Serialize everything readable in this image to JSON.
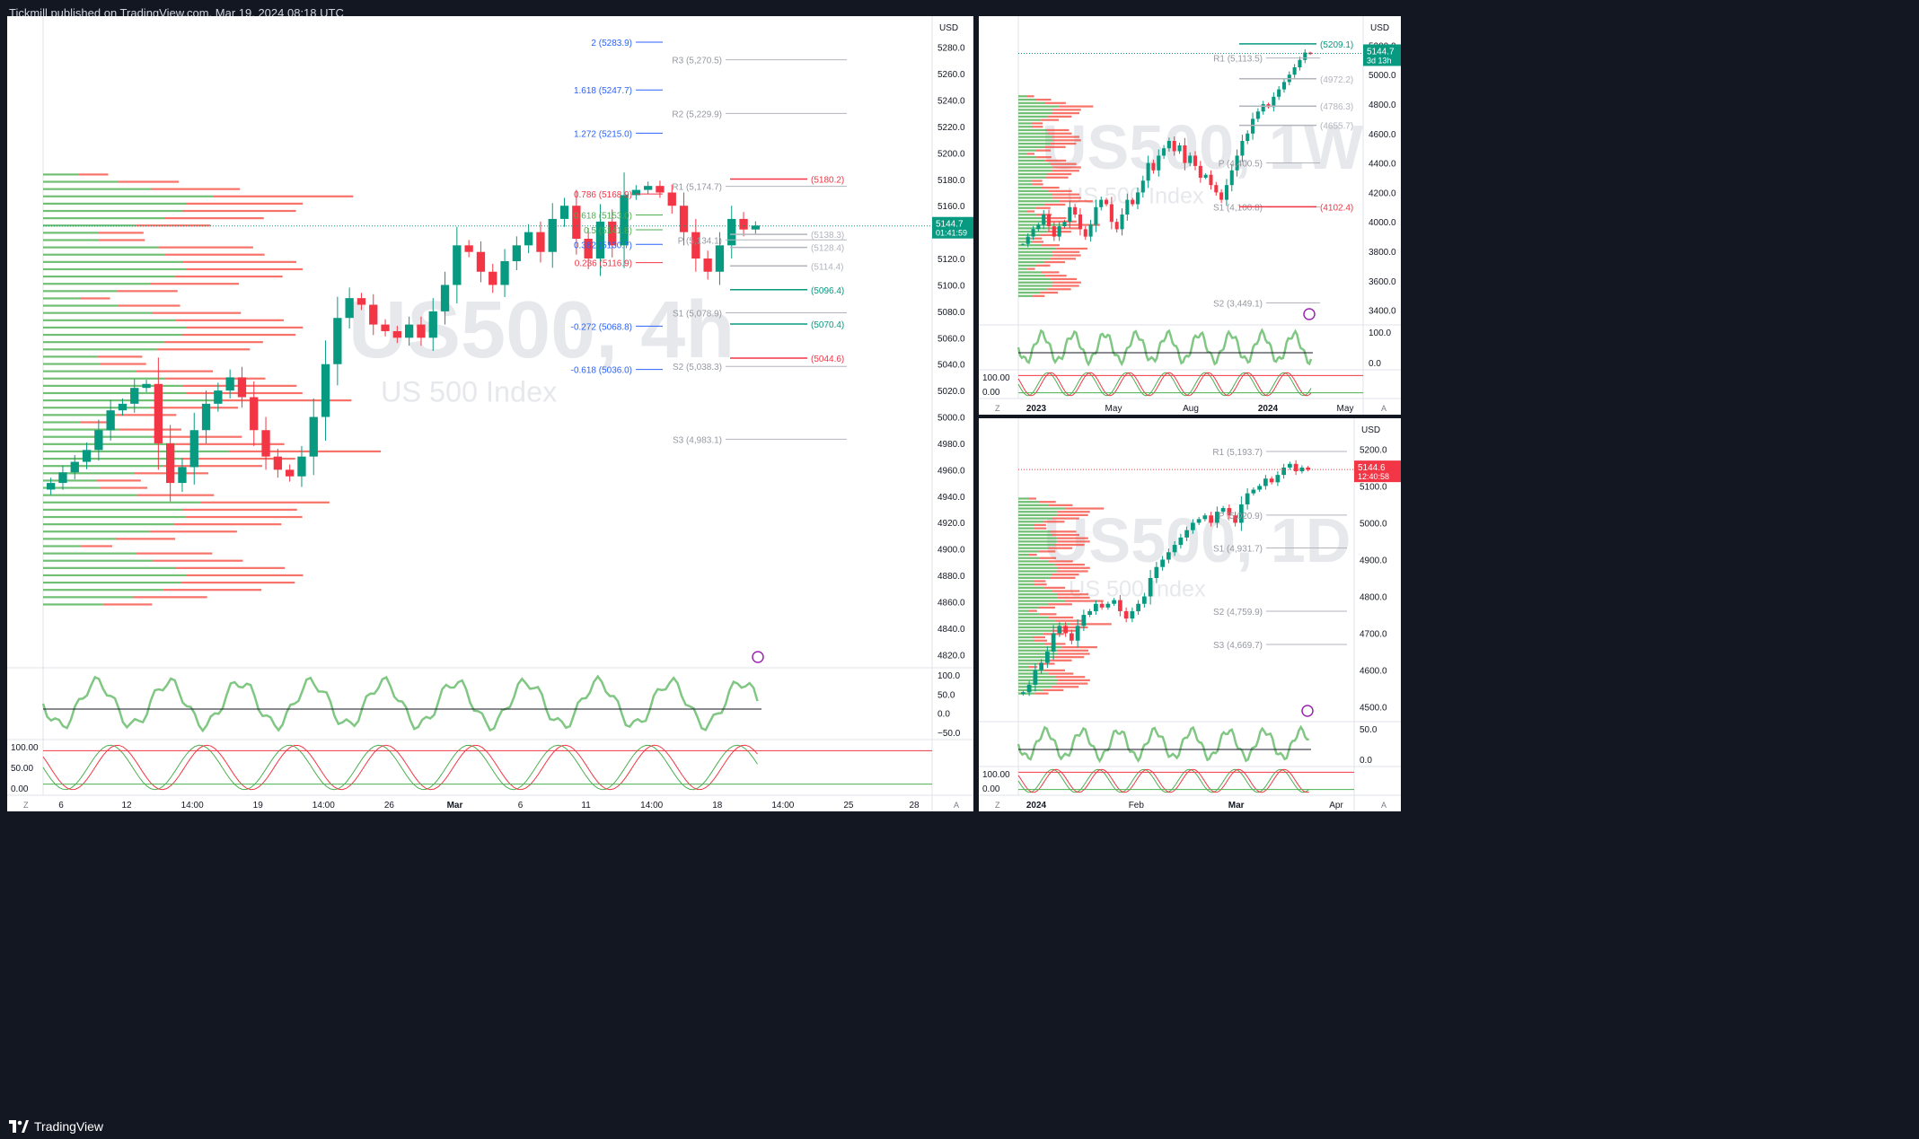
{
  "header": {
    "published": "Tickmill published on TradingView.com, Mar 19, 2024 08:18 UTC"
  },
  "footer": {
    "brand": "TradingView"
  },
  "chart_data": [
    {
      "type": "candlestick",
      "symbol": "US500",
      "timeframe": "4h",
      "watermark_symbol": "US500, 4h",
      "watermark_name": "US 500 Index",
      "currency": "USD",
      "last_price": "5144.7",
      "countdown": "01:41:59",
      "y_ticks": [
        "5280.0",
        "5260.0",
        "5240.0",
        "5220.0",
        "5200.0",
        "5180.0",
        "5160.0",
        "5140.0",
        "5120.0",
        "5100.0",
        "5080.0",
        "5060.0",
        "5040.0",
        "5020.0",
        "5000.0",
        "4980.0",
        "4960.0",
        "4940.0",
        "4920.0",
        "4900.0",
        "4880.0",
        "4860.0",
        "4840.0",
        "4820.0"
      ],
      "ylim": [
        4810,
        5290
      ],
      "x_ticks": [
        "6",
        "12",
        "14:00",
        "19",
        "14:00",
        "26",
        "Mar",
        "6",
        "11",
        "14:00",
        "18",
        "14:00",
        "25",
        "28"
      ],
      "fib_levels": [
        {
          "label": "2 (5283.9)",
          "value": 5283.9,
          "color": "#2962ff"
        },
        {
          "label": "1.618 (5247.7)",
          "value": 5247.7,
          "color": "#2962ff"
        },
        {
          "label": "1.272 (5215.0)",
          "value": 5215.0,
          "color": "#2962ff"
        },
        {
          "label": "0.786 (5168.9)",
          "value": 5168.9,
          "color": "#f23645"
        },
        {
          "label": "0.618 (5153.0)",
          "value": 5153.0,
          "color": "#4caf50"
        },
        {
          "label": "0.5 (5141.8)",
          "value": 5141.8,
          "color": "#4caf50"
        },
        {
          "label": "0.382 (5130.7)",
          "value": 5130.7,
          "color": "#2962ff"
        },
        {
          "label": "0.236 (5116.9)",
          "value": 5116.9,
          "color": "#f23645"
        },
        {
          "label": "-0.272 (5068.8)",
          "value": 5068.8,
          "color": "#2962ff"
        },
        {
          "label": "-0.618 (5036.0)",
          "value": 5036.0,
          "color": "#2962ff"
        }
      ],
      "pivots": [
        {
          "label": "R3 (5,270.5)",
          "value": 5270.5
        },
        {
          "label": "R2 (5,229.9)",
          "value": 5229.9
        },
        {
          "label": "R1 (5,174.7)",
          "value": 5174.7
        },
        {
          "label": "P (5,134.1)",
          "value": 5134.1
        },
        {
          "label": "S1 (5,078.9)",
          "value": 5078.9
        },
        {
          "label": "S2 (5,038.3)",
          "value": 5038.3
        },
        {
          "label": "S3 (4,983.1)",
          "value": 4983.1
        }
      ],
      "levels": [
        {
          "label": "(5180.2)",
          "value": 5180.2,
          "color": "#f23645"
        },
        {
          "label": "(5138.3)",
          "value": 5138.3,
          "color": "#b2b5be"
        },
        {
          "label": "(5128.4)",
          "value": 5128.4,
          "color": "#b2b5be"
        },
        {
          "label": "(5114.4)",
          "value": 5114.4,
          "color": "#b2b5be"
        },
        {
          "label": "(5096.4)",
          "value": 5096.4,
          "color": "#089981"
        },
        {
          "label": "(5070.4)",
          "value": 5070.4,
          "color": "#089981"
        },
        {
          "label": "(5044.6)",
          "value": 5044.6,
          "color": "#f23645"
        }
      ],
      "rsi_ticks": [
        "100.0",
        "50.0",
        "0.0",
        "−50.0"
      ],
      "stoch_ticks": [
        "100.00",
        "50.00",
        "0.00"
      ],
      "close_series": [
        4950,
        4958,
        4966,
        4975,
        4990,
        5005,
        5010,
        5022,
        5025,
        4980,
        4950,
        4962,
        4990,
        5010,
        5020,
        5030,
        5015,
        4990,
        4970,
        4960,
        4955,
        4970,
        5000,
        5040,
        5075,
        5090,
        5085,
        5070,
        5065,
        5060,
        5070,
        5060,
        5080,
        5100,
        5130,
        5125,
        5110,
        5100,
        5118,
        5130,
        5140,
        5125,
        5150,
        5160,
        5135,
        5120,
        5148,
        5130,
        5168,
        5172,
        5175,
        5170,
        5160,
        5140,
        5120,
        5110,
        5130,
        5150,
        5142,
        5145
      ]
    },
    {
      "type": "candlestick",
      "symbol": "US500",
      "timeframe": "1W",
      "watermark_symbol": "US500, 1W",
      "watermark_name": "US 500 Index",
      "currency": "USD",
      "last_price": "5144.7",
      "countdown": "3d 13h",
      "y_ticks": [
        "5200.0",
        "5000.0",
        "4800.0",
        "4600.0",
        "4400.0",
        "4200.0",
        "4000.0",
        "3800.0",
        "3600.0",
        "3400.0"
      ],
      "ylim": [
        3300,
        5300
      ],
      "x_ticks": [
        "2023",
        "May",
        "Aug",
        "2024",
        "May"
      ],
      "pivots": [
        {
          "label": "R1 (5,113.5)",
          "value": 5113.5
        },
        {
          "label": "P (4,400.5)",
          "value": 4400.5
        },
        {
          "label": "S1 (4,100.8)",
          "value": 4100.8
        },
        {
          "label": "S2 (3,449.1)",
          "value": 3449.1
        }
      ],
      "levels": [
        {
          "label": "(5209.1)",
          "value": 5209.1,
          "color": "#089981"
        },
        {
          "label": "(4972.2)",
          "value": 4972.2,
          "color": "#b2b5be"
        },
        {
          "label": "(4786.3)",
          "value": 4786.3,
          "color": "#b2b5be"
        },
        {
          "label": "(4655.7)",
          "value": 4655.7,
          "color": "#b2b5be"
        },
        {
          "label": "(4102.4)",
          "value": 4102.4,
          "color": "#f23645"
        }
      ],
      "rsi_ticks": [
        "100.0",
        "0.0"
      ],
      "stoch_ticks": [
        "100.00",
        "0.00"
      ],
      "close_series": [
        3850,
        3900,
        3950,
        3980,
        4050,
        3970,
        3900,
        3970,
        4000,
        4100,
        4050,
        3950,
        3900,
        3980,
        4100,
        4150,
        4120,
        4000,
        3950,
        4050,
        4150,
        4120,
        4200,
        4280,
        4400,
        4350,
        4450,
        4500,
        4550,
        4480,
        4520,
        4400,
        4450,
        4380,
        4300,
        4320,
        4250,
        4200,
        4150,
        4250,
        4350,
        4450,
        4550,
        4600,
        4700,
        4750,
        4800,
        4780,
        4850,
        4900,
        4950,
        5000,
        5050,
        5100,
        5150,
        5140
      ]
    },
    {
      "type": "candlestick",
      "symbol": "US500",
      "timeframe": "1D",
      "watermark_symbol": "US500, 1D",
      "watermark_name": "US 500 Index",
      "currency": "USD",
      "last_price": "5144.6",
      "countdown": "12:40:58",
      "y_ticks": [
        "5200.0",
        "5100.0",
        "5000.0",
        "4900.0",
        "4800.0",
        "4700.0",
        "4600.0",
        "4500.0"
      ],
      "ylim": [
        4460,
        5240
      ],
      "x_ticks": [
        "2024",
        "Feb",
        "Mar",
        "Apr"
      ],
      "pivots": [
        {
          "label": "R1 (5,193.7)",
          "value": 5193.7
        },
        {
          "label": "P (5,020.9)",
          "value": 5020.9
        },
        {
          "label": "S1 (4,931.7)",
          "value": 4931.7
        },
        {
          "label": "S2 (4,759.9)",
          "value": 4759.9
        },
        {
          "label": "S3 (4,669.7)",
          "value": 4669.7
        }
      ],
      "rsi_ticks": [
        "50.0",
        "0.0"
      ],
      "stoch_ticks": [
        "100.00",
        "0.00"
      ],
      "close_series": [
        4540,
        4560,
        4600,
        4620,
        4650,
        4700,
        4720,
        4700,
        4680,
        4720,
        4750,
        4760,
        4780,
        4770,
        4780,
        4790,
        4760,
        4740,
        4760,
        4780,
        4800,
        4850,
        4880,
        4900,
        4920,
        4940,
        4960,
        4980,
        5000,
        5010,
        5020,
        5000,
        5030,
        5040,
        5020,
        5000,
        5050,
        5080,
        5090,
        5100,
        5120,
        5110,
        5130,
        5150,
        5160,
        5140,
        5150,
        5144
      ]
    }
  ]
}
